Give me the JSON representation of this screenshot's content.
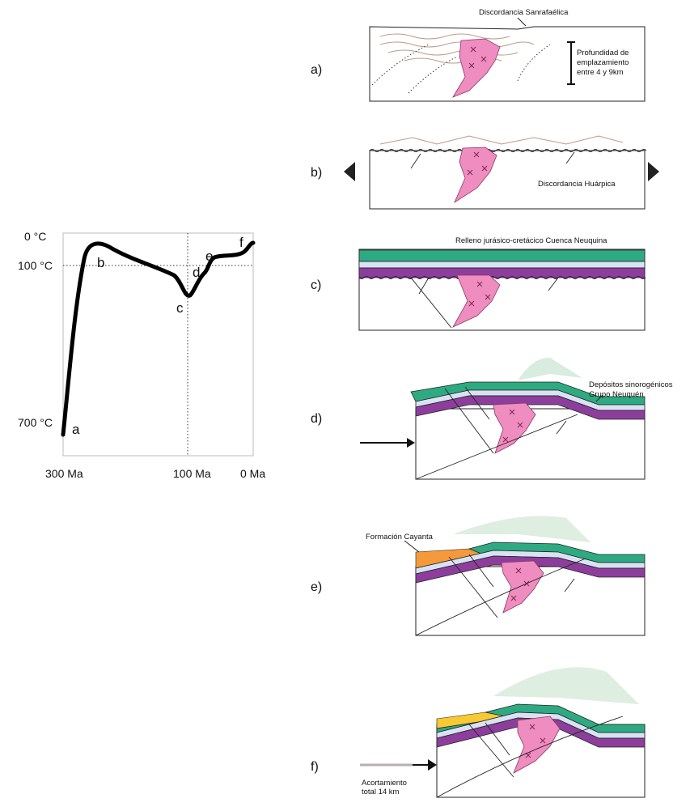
{
  "tt_path": {
    "y_labels": [
      "0 °C",
      "100 °C",
      "700 °C"
    ],
    "x_labels": [
      "300 Ma",
      "100 Ma",
      "0 Ma"
    ],
    "points": [
      "a",
      "b",
      "c",
      "d",
      "e",
      "f"
    ]
  },
  "panels": [
    {
      "label": "a)",
      "annotations": [
        "Discordancia Sanrafaélica"
      ],
      "note_lines": [
        "Profundidad de",
        "emplazamiento",
        "entre 4 y 9km"
      ]
    },
    {
      "label": "b)",
      "annotations": [
        "Discordancia Huárpica"
      ]
    },
    {
      "label": "c)",
      "annotations": [
        "Relleno jurásico-cretácico Cuenca Neuquina"
      ]
    },
    {
      "label": "d)",
      "note_lines": [
        "Depósitos sinorogénicos",
        "Grupo Neuquén"
      ]
    },
    {
      "label": "e)",
      "annotations": [
        "Formación Cayanta"
      ]
    },
    {
      "label": "f)",
      "note_lines": [
        "Acortamiento",
        "total 14 km"
      ]
    }
  ]
}
